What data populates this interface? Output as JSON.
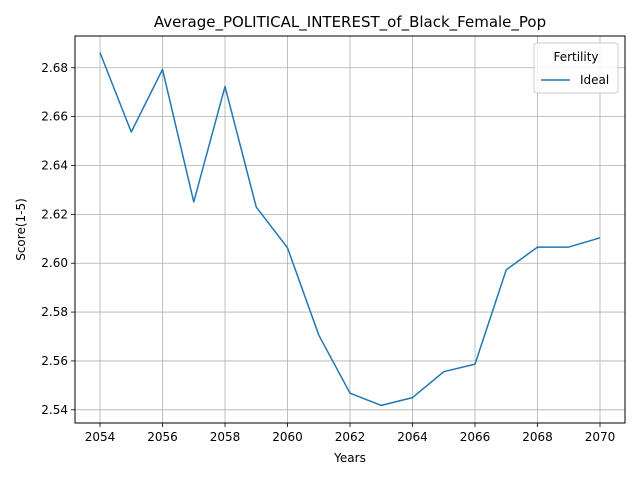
{
  "chart_data": {
    "type": "line",
    "title": "Average_POLITICAL_INTEREST_of_Black_Female_Pop",
    "xlabel": "Years",
    "ylabel": "Score(1-5)",
    "xlim": [
      2053.2,
      2070.8
    ],
    "ylim": [
      2.5346,
      2.693
    ],
    "xticks": [
      2054,
      2056,
      2058,
      2060,
      2062,
      2064,
      2066,
      2068,
      2070
    ],
    "yticks": [
      2.54,
      2.56,
      2.58,
      2.6,
      2.62,
      2.64,
      2.66,
      2.68
    ],
    "xtick_labels": [
      "2054",
      "2056",
      "2058",
      "2060",
      "2062",
      "2064",
      "2066",
      "2068",
      "2070"
    ],
    "ytick_labels": [
      "2.54",
      "2.56",
      "2.58",
      "2.60",
      "2.62",
      "2.64",
      "2.66",
      "2.68"
    ],
    "grid": true,
    "legend": {
      "title": "Fertility",
      "placement": "top-right"
    },
    "series": [
      {
        "name": "Ideal",
        "color": "#1f77b4",
        "x": [
          2054,
          2055,
          2056,
          2057,
          2058,
          2059,
          2060,
          2061,
          2062,
          2063,
          2064,
          2065,
          2066,
          2067,
          2068,
          2069,
          2070
        ],
        "y": [
          2.6862,
          2.6537,
          2.6793,
          2.6251,
          2.6723,
          2.623,
          2.6063,
          2.5706,
          2.5468,
          2.5418,
          2.545,
          2.5556,
          2.5587,
          2.5973,
          2.6066,
          2.6066,
          2.6104
        ]
      }
    ]
  }
}
